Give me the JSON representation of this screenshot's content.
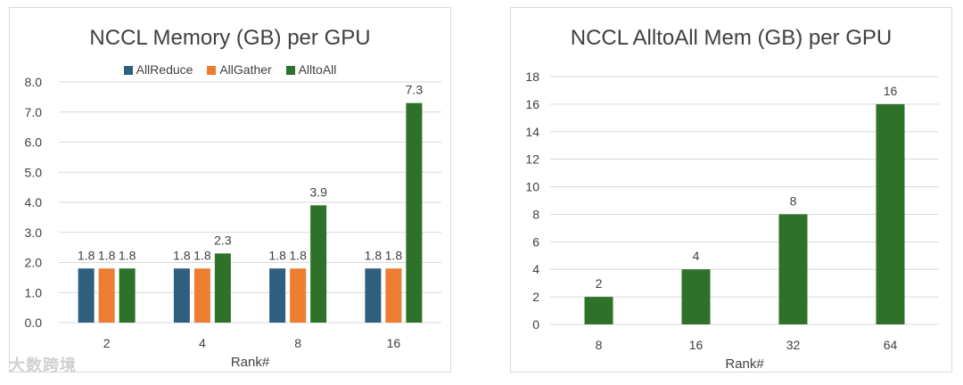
{
  "watermark": {
    "text": "大数跨境"
  },
  "chart_data": [
    {
      "type": "bar",
      "title": "NCCL Memory (GB) per GPU",
      "xlabel": "Rank#",
      "ylabel": "",
      "categories": [
        "2",
        "4",
        "8",
        "16"
      ],
      "series": [
        {
          "name": "AllReduce",
          "color": "#2e5f7f",
          "values": [
            1.8,
            1.8,
            1.8,
            1.8
          ],
          "labels": [
            "1.8",
            "1.8",
            "1.8",
            "1.8"
          ]
        },
        {
          "name": "AllGather",
          "color": "#ed7d31",
          "values": [
            1.8,
            1.8,
            1.8,
            1.8
          ],
          "labels": [
            "1.8",
            "1.8",
            "1.8",
            "1.8"
          ]
        },
        {
          "name": "AlltoAll",
          "color": "#2e7129",
          "values": [
            1.8,
            2.3,
            3.9,
            7.3
          ],
          "labels": [
            "1.8",
            "2.3",
            "3.9",
            "7.3"
          ]
        }
      ],
      "ylim": [
        0,
        8
      ],
      "yticks": [
        "0.0",
        "1.0",
        "2.0",
        "3.0",
        "4.0",
        "5.0",
        "6.0",
        "7.0",
        "8.0"
      ],
      "grid": true,
      "legend": "top"
    },
    {
      "type": "bar",
      "title": "NCCL AlltoAll Mem (GB) per GPU",
      "xlabel": "Rank#",
      "ylabel": "",
      "categories": [
        "8",
        "16",
        "32",
        "64"
      ],
      "series": [
        {
          "color": "#2e7129",
          "values": [
            2,
            4,
            8,
            16
          ],
          "labels": [
            "2",
            "4",
            "8",
            "16"
          ]
        }
      ],
      "ylim": [
        0,
        18
      ],
      "yticks": [
        "0",
        "2",
        "4",
        "6",
        "8",
        "10",
        "12",
        "14",
        "16",
        "18"
      ],
      "grid": true,
      "legend": "none"
    }
  ]
}
